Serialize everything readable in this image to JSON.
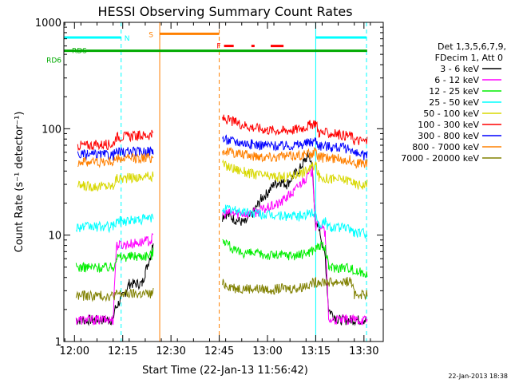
{
  "chart_data": {
    "type": "line",
    "title": "HESSI Observing Summary Count Rates",
    "xlabel": "Start Time (22-Jan-13 11:56:42)",
    "ylabel": "Count Rate (s⁻¹ detector⁻¹)",
    "yscale": "log",
    "ylim": [
      1,
      1000
    ],
    "xlim_min": [
      -3.3,
      42
    ],
    "x_unit": "minutes after 12:00",
    "x_ticks": [
      {
        "v": 0,
        "label": "12:00"
      },
      {
        "v": 15,
        "label": "12:15"
      },
      {
        "v": 30,
        "label": "12:30"
      },
      {
        "v": 45,
        "label": "12:45"
      },
      {
        "v": 60,
        "label": "13:00"
      },
      {
        "v": 75,
        "label": "13:15"
      },
      {
        "v": 90,
        "label": "13:30"
      }
    ],
    "y_ticks": [
      {
        "v": 1,
        "label": "1"
      },
      {
        "v": 10,
        "label": "10"
      },
      {
        "v": 100,
        "label": "100"
      },
      {
        "v": 1000,
        "label": "1000"
      }
    ],
    "legend_title": [
      "Det 1,3,5,6,7,9,",
      "FDecim 1, Att 0"
    ],
    "legend_position": "right",
    "series": [
      {
        "name": "3 - 6 keV",
        "color": "#000000",
        "x": [
          0.5,
          4,
          12,
          12.5,
          16,
          17,
          21,
          22,
          24,
          24.5,
          46,
          47,
          50,
          53,
          56,
          58,
          60,
          62,
          64,
          66,
          68,
          70,
          71.5,
          72.5,
          73,
          74,
          75,
          76,
          78,
          79,
          82,
          86,
          87,
          91
        ],
        "y": [
          1.6,
          1.6,
          1.6,
          2,
          3,
          3.5,
          3.5,
          4.5,
          7,
          9,
          15,
          16,
          14,
          13,
          17,
          22,
          25,
          30,
          32,
          30,
          36,
          42,
          50,
          55,
          58,
          40,
          12,
          12,
          6,
          2,
          1.6,
          1.6,
          1.6,
          1.6
        ]
      },
      {
        "name": "6 - 12 keV",
        "color": "#ff00ff",
        "x": [
          0.5,
          4,
          12,
          13,
          20,
          24,
          24.5,
          46,
          50,
          55,
          60,
          64,
          66,
          68,
          70,
          72,
          74,
          75,
          76,
          77,
          78,
          79,
          82,
          86,
          87,
          91
        ],
        "y": [
          1.6,
          1.6,
          1.6,
          8,
          8.5,
          9,
          10,
          16,
          16,
          16,
          18,
          20,
          23,
          25,
          30,
          35,
          40,
          12,
          12.5,
          12,
          10,
          1.6,
          1.6,
          1.6,
          1.6,
          1.6
        ]
      },
      {
        "name": "12 - 25 keV",
        "color": "#00ee00",
        "x": [
          0.5,
          4,
          12,
          13,
          20,
          24,
          24.5,
          46,
          50,
          60,
          70,
          73,
          75,
          76,
          78,
          79,
          80,
          86,
          87,
          91
        ],
        "y": [
          5,
          5,
          5,
          6.2,
          6.4,
          6.5,
          7,
          9.5,
          7,
          6.5,
          6.5,
          7,
          7.5,
          8,
          7.5,
          5,
          5,
          5,
          4.5,
          4.5
        ]
      },
      {
        "name": "25 - 50 keV",
        "color": "#00ffff",
        "x": [
          0.5,
          4,
          12,
          13,
          20,
          24,
          24.5,
          46,
          50,
          60,
          70,
          73,
          75,
          76,
          78,
          79,
          80,
          86,
          87,
          91
        ],
        "y": [
          12,
          12,
          12,
          13.5,
          14,
          14.5,
          15,
          18,
          17,
          15.5,
          15,
          16,
          16.5,
          12.5,
          13.5,
          12,
          12,
          11.5,
          10.5,
          10.5
        ]
      },
      {
        "name": "50 - 100 keV",
        "color": "#d8d800",
        "x": [
          1,
          4,
          12,
          13,
          20,
          24,
          24.5,
          46,
          50,
          55,
          60,
          65,
          70,
          73,
          75,
          76,
          80,
          86,
          87,
          91
        ],
        "y": [
          29,
          29,
          29,
          34,
          35,
          36,
          38,
          46,
          42,
          38,
          36,
          35,
          38,
          42,
          46,
          35,
          34,
          33,
          30,
          30
        ]
      },
      {
        "name": "100 - 300 keV",
        "color": "#ff0000",
        "x": [
          1,
          4,
          12,
          13,
          20,
          24,
          24.5,
          46,
          50,
          55,
          60,
          65,
          70,
          73,
          75,
          76,
          80,
          86,
          87,
          91
        ],
        "y": [
          70,
          70,
          72,
          84,
          86,
          88,
          90,
          125,
          115,
          104,
          98,
          96,
          100,
          108,
          115,
          92,
          90,
          86,
          78,
          76
        ]
      },
      {
        "name": "300 - 800 keV",
        "color": "#0000ff",
        "x": [
          1,
          4,
          12,
          13,
          20,
          24,
          24.5,
          46,
          50,
          55,
          60,
          65,
          70,
          73,
          75,
          76,
          80,
          86,
          87,
          91
        ],
        "y": [
          57,
          57,
          57,
          60,
          61,
          62,
          64,
          80,
          76,
          72,
          70,
          69,
          71,
          74,
          78,
          70,
          68,
          65,
          58,
          56
        ]
      },
      {
        "name": "800 - 7000 keV",
        "color": "#ff8000",
        "x": [
          1,
          4,
          12,
          13,
          20,
          24,
          24.5,
          46,
          50,
          55,
          60,
          65,
          70,
          73,
          75,
          76,
          80,
          86,
          87,
          91
        ],
        "y": [
          49,
          49,
          49,
          52,
          53,
          54,
          55,
          62,
          59,
          56,
          55,
          55,
          57,
          58,
          60,
          54,
          53,
          51,
          48,
          47
        ]
      },
      {
        "name": "7000 - 20000 keV",
        "color": "#808000",
        "x": [
          0.5,
          4,
          12,
          13,
          20,
          24,
          24.5,
          46,
          50,
          60,
          70,
          73,
          75,
          76,
          80,
          86,
          87,
          91
        ],
        "y": [
          2.7,
          2.7,
          2.7,
          2.8,
          2.8,
          2.8,
          2.9,
          3.5,
          3.2,
          3.1,
          3.2,
          3.5,
          3.6,
          3.7,
          3.6,
          3.7,
          2.8,
          2.8
        ]
      }
    ],
    "status_bars": [
      {
        "label": "N",
        "color": "#00ffff",
        "segments": [
          [
            -4,
            14.5
          ],
          [
            75,
            90.8
          ]
        ],
        "level": 720
      },
      {
        "label": "S",
        "color": "#ff8000",
        "segments": [
          [
            26.5,
            45
          ]
        ],
        "level": 780
      },
      {
        "label": "F",
        "color": "#ff0000",
        "segments": [
          [
            46.5,
            49.5
          ],
          [
            55,
            56
          ],
          [
            61,
            65
          ]
        ],
        "level": 600
      },
      {
        "label": "RDS",
        "color": "#00aa00",
        "segments": [
          [
            -4,
            91
          ]
        ],
        "level": 540
      },
      {
        "label": "RD6",
        "color": "#00aa00",
        "segments": [
          [
            -4,
            -3.3
          ]
        ],
        "level": 440
      }
    ],
    "vlines": [
      {
        "x": -3.3,
        "color": "#00ffff",
        "style": "solid"
      },
      {
        "x": 14.5,
        "color": "#00ffff",
        "style": "dashed"
      },
      {
        "x": 26.5,
        "color": "#ff8000",
        "style": "solid"
      },
      {
        "x": 45,
        "color": "#ff8000",
        "style": "dashed"
      },
      {
        "x": 75,
        "color": "#00ffff",
        "style": "solid"
      },
      {
        "x": 90.8,
        "color": "#00ffff",
        "style": "dashed"
      }
    ],
    "footer_date": "22-Jan-2013 18:38"
  }
}
